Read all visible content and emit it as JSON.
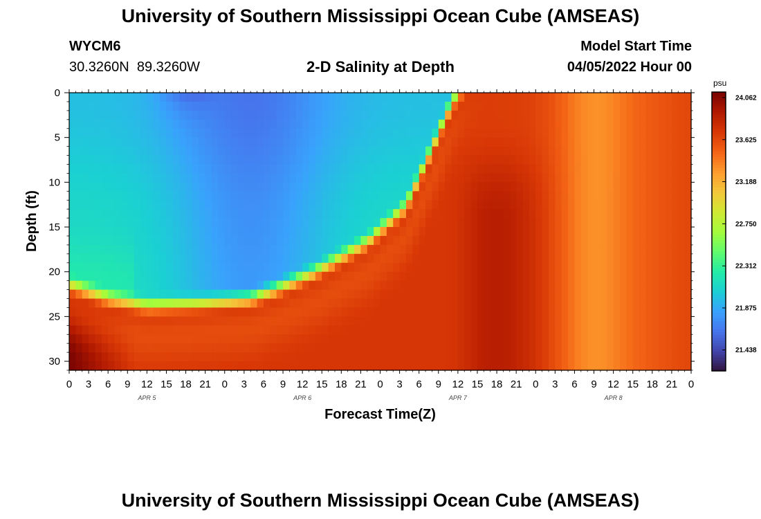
{
  "header": {
    "title": "University of Southern Mississippi Ocean Cube (AMSEAS)",
    "station_id": "WYCM6",
    "station_coords": "30.3260N  89.3260W",
    "subtitle": "2-D Salinity at Depth",
    "model_start_label": "Model Start Time",
    "model_start_value": "04/05/2022 Hour 00"
  },
  "footer": {
    "title": "University of Southern Mississippi Ocean Cube (AMSEAS)"
  },
  "chart_data": {
    "type": "heatmap",
    "title": "2-D Salinity at Depth",
    "xlabel": "Forecast Time(Z)",
    "ylabel": "Depth (ft)",
    "x_hours_range": [
      0,
      96
    ],
    "x_tick_labels": [
      "0",
      "3",
      "6",
      "9",
      "12",
      "15",
      "18",
      "21",
      "0",
      "3",
      "6",
      "9",
      "12",
      "15",
      "18",
      "21",
      "0",
      "3",
      "6",
      "9",
      "12",
      "15",
      "18",
      "21",
      "0",
      "3",
      "6",
      "9",
      "12",
      "15",
      "18",
      "21",
      "0"
    ],
    "date_labels": [
      {
        "label": "APR 5",
        "hour": 12
      },
      {
        "label": "APR 6",
        "hour": 36
      },
      {
        "label": "APR 7",
        "hour": 60
      },
      {
        "label": "APR 8",
        "hour": 84
      }
    ],
    "ylim": [
      0,
      31
    ],
    "y_ticks": [
      0,
      5,
      10,
      15,
      20,
      25,
      30
    ],
    "colorbar": {
      "unit": "psu",
      "range": [
        21.22,
        24.12
      ],
      "ticks": [
        "24.062",
        "23.625",
        "23.188",
        "22.750",
        "22.312",
        "21.875",
        "21.438"
      ],
      "tick_values": [
        24.062,
        23.625,
        23.188,
        22.75,
        22.312,
        21.875,
        21.438
      ]
    },
    "colors": [
      "#30123b",
      "#4145ab",
      "#4675ed",
      "#39a2fc",
      "#1bcfd4",
      "#24eca6",
      "#61fc6c",
      "#a4fc3b",
      "#d1e834",
      "#f3c63a",
      "#fe9b2d",
      "#f36315",
      "#d93806",
      "#b11901",
      "#7a0402"
    ],
    "description_fields": {
      "upper_low": "low salinity (21.4-21.9 psu) in upper layer until ~hour 57",
      "bottom_high": "high salinity (~24.0 psu) near bottom at start",
      "late": "mixed 23.4-23.9 psu after hour 60"
    }
  }
}
